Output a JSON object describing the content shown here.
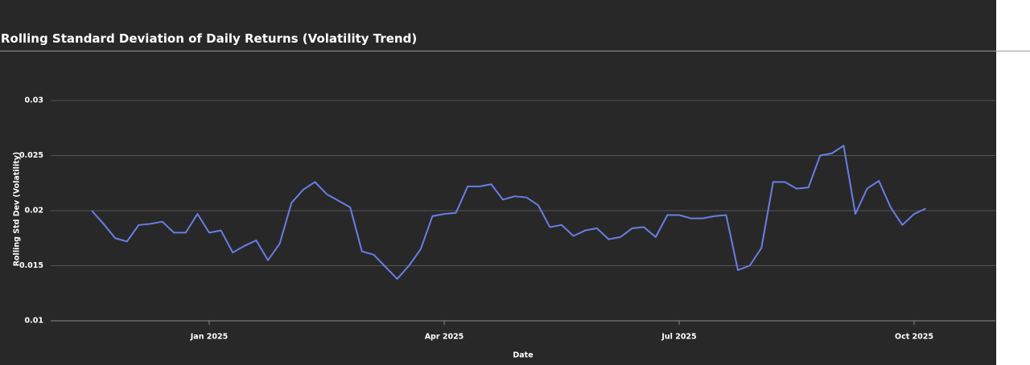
{
  "chart_data": {
    "type": "line",
    "title": "Rolling Standard Deviation of Daily Returns (Volatility Trend)",
    "x_label": "Date",
    "y_label": "Rolling Std Dev (Volatility)",
    "categories": [
      null,
      null,
      null,
      null,
      null,
      null,
      null,
      null,
      null,
      null,
      "Jan 2025",
      null,
      null,
      null,
      null,
      null,
      null,
      null,
      null,
      null,
      null,
      null,
      null,
      null,
      null,
      null,
      null,
      null,
      null,
      null,
      "Apr 2025",
      null,
      null,
      null,
      null,
      null,
      null,
      null,
      null,
      null,
      null,
      null,
      null,
      null,
      null,
      null,
      null,
      null,
      null,
      null,
      "Jul 2025",
      null,
      null,
      null,
      null,
      null,
      null,
      null,
      null,
      null,
      null,
      null,
      null,
      null,
      null,
      null,
      null,
      null,
      null,
      null,
      "Oct 2025",
      null
    ],
    "series": [
      {
        "name": "Rolling Std Dev",
        "color": "#6a7de6",
        "values": [
          0.02,
          0.0188,
          0.0175,
          0.0172,
          0.0187,
          0.0188,
          0.019,
          0.018,
          0.018,
          0.0197,
          0.018,
          0.0182,
          0.0162,
          0.0168,
          0.0173,
          0.0155,
          0.017,
          0.0207,
          0.0219,
          0.0226,
          0.0215,
          0.0209,
          0.0203,
          0.0163,
          0.016,
          0.0149,
          0.0138,
          0.015,
          0.0165,
          0.0195,
          0.0197,
          0.0198,
          0.0222,
          0.0222,
          0.0224,
          0.021,
          0.0213,
          0.0212,
          0.0205,
          0.0185,
          0.0187,
          0.0177,
          0.0182,
          0.0184,
          0.0174,
          0.0176,
          0.0184,
          0.0185,
          0.0176,
          0.0196,
          0.0196,
          0.0193,
          0.0193,
          0.0195,
          0.0196,
          0.0146,
          0.015,
          0.0166,
          0.0226,
          0.0226,
          0.022,
          0.0221,
          0.025,
          0.0252,
          0.0259,
          0.0197,
          0.022,
          0.0227,
          0.0203,
          0.0187,
          0.0197,
          0.0202
        ]
      }
    ],
    "ylim": [
      0.01,
      0.03
    ],
    "yticks": [
      0.01,
      0.015,
      0.02,
      0.025,
      0.03
    ],
    "grid": true
  }
}
